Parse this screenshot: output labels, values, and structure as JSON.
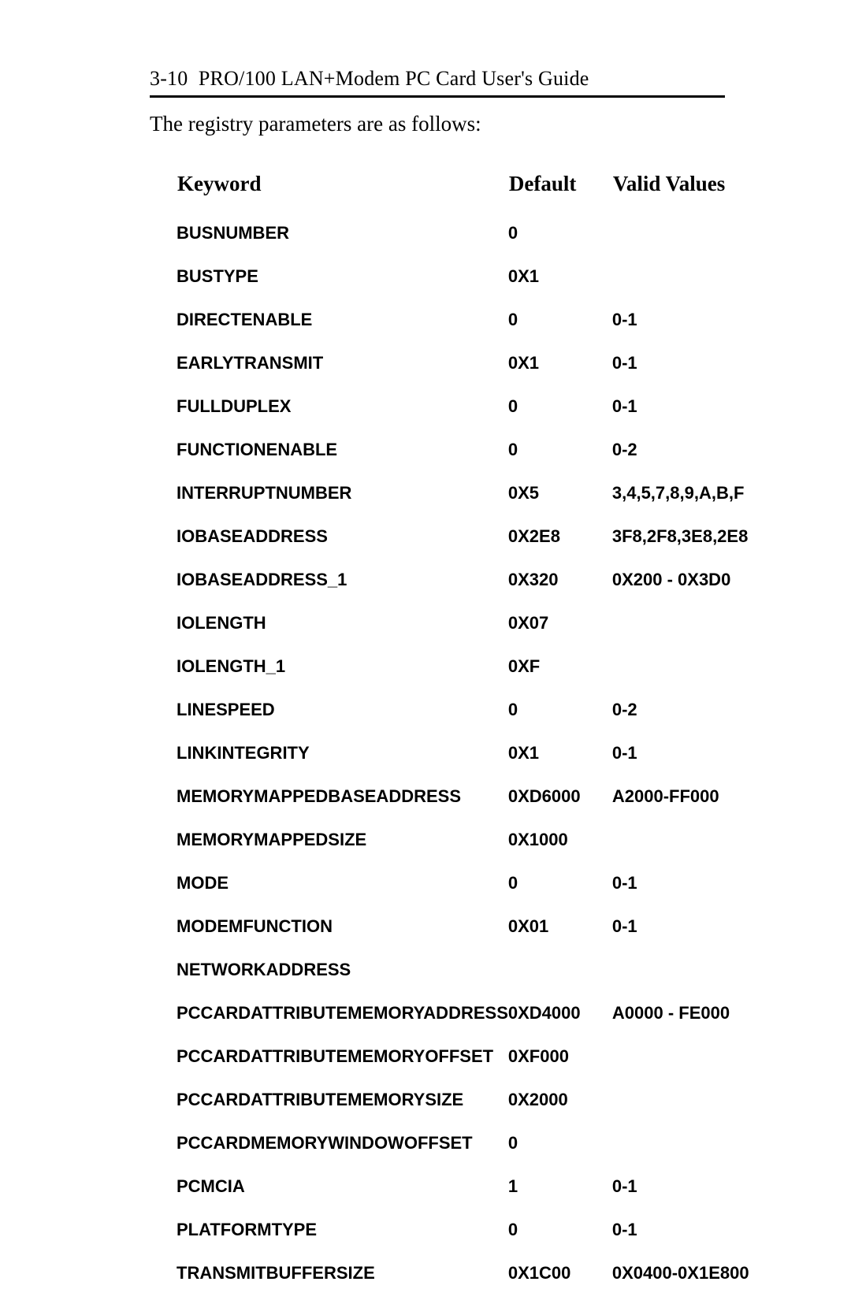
{
  "header": {
    "page_ref": "3-10",
    "title_rest": "PRO/100 LAN+Modem PC Card User's Guide"
  },
  "intro": "The registry parameters are as follows:",
  "table": {
    "columns": [
      "Keyword",
      "Default",
      "Valid Values"
    ],
    "rows": [
      {
        "keyword": "BUSNUMBER",
        "default": "0",
        "valid": ""
      },
      {
        "keyword": "BUSTYPE",
        "default": "0X1",
        "valid": ""
      },
      {
        "keyword": "DIRECTENABLE",
        "default": "0",
        "valid": "0-1"
      },
      {
        "keyword": "EARLYTRANSMIT",
        "default": "0X1",
        "valid": "0-1"
      },
      {
        "keyword": "FULLDUPLEX",
        "default": "0",
        "valid": "0-1"
      },
      {
        "keyword": "FUNCTIONENABLE",
        "default": "0",
        "valid": "0-2"
      },
      {
        "keyword": "INTERRUPTNUMBER",
        "default": "0X5",
        "valid": "3,4,5,7,8,9,A,B,F"
      },
      {
        "keyword": "IOBASEADDRESS",
        "default": "0X2E8",
        "valid": "3F8,2F8,3E8,2E8"
      },
      {
        "keyword": "IOBASEADDRESS_1",
        "default": "0X320",
        "valid": "0X200 - 0X3D0"
      },
      {
        "keyword": "IOLENGTH",
        "default": "0X07",
        "valid": ""
      },
      {
        "keyword": "IOLENGTH_1",
        "default": "0XF",
        "valid": ""
      },
      {
        "keyword": "LINESPEED",
        "default": "0",
        "valid": "0-2"
      },
      {
        "keyword": "LINKINTEGRITY",
        "default": "0X1",
        "valid": "0-1"
      },
      {
        "keyword": "MEMORYMAPPEDBASEADDRESS",
        "default": "0XD6000",
        "valid": "A2000-FF000"
      },
      {
        "keyword": "MEMORYMAPPEDSIZE",
        "default": "0X1000",
        "valid": ""
      },
      {
        "keyword": "MODE",
        "default": "0",
        "valid": "0-1"
      },
      {
        "keyword": "MODEMFUNCTION",
        "default": "0X01",
        "valid": "0-1"
      },
      {
        "keyword": "NETWORKADDRESS",
        "default": "",
        "valid": ""
      },
      {
        "keyword": "PCCARDATTRIBUTEMEMORYADDRESS",
        "default": "0XD4000",
        "valid": "A0000 - FE000"
      },
      {
        "keyword": "PCCARDATTRIBUTEMEMORYOFFSET",
        "default": "0XF000",
        "valid": ""
      },
      {
        "keyword": "PCCARDATTRIBUTEMEMORYSIZE",
        "default": "0X2000",
        "valid": ""
      },
      {
        "keyword": "PCCARDMEMORYWINDOWOFFSET",
        "default": "0",
        "valid": ""
      },
      {
        "keyword": "PCMCIA",
        "default": "1",
        "valid": "0-1"
      },
      {
        "keyword": "PLATFORMTYPE",
        "default": "0",
        "valid": "0-1"
      },
      {
        "keyword": "TRANSMITBUFFERSIZE",
        "default": "0X1C00",
        "valid": "0X0400-0X1E800"
      }
    ]
  }
}
